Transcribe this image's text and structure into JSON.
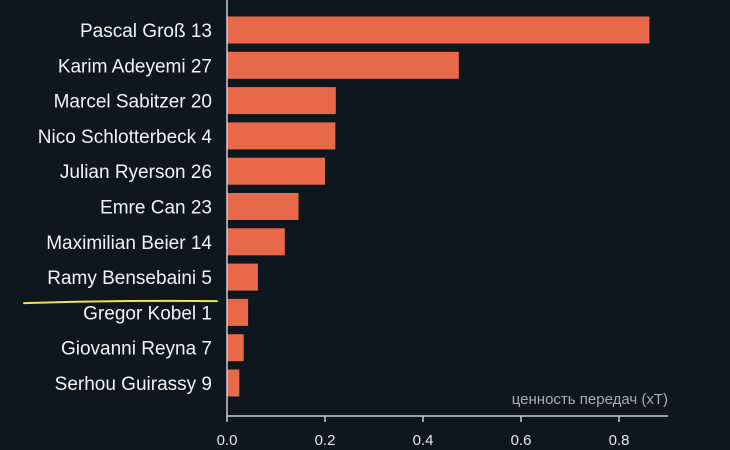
{
  "chart_data": {
    "type": "bar",
    "orientation": "horizontal",
    "categories": [
      "Pascal Groß 13",
      "Karim Adeyemi 27",
      "Marcel Sabitzer 20",
      "Nico Schlotterbeck 4",
      "Julian Ryerson 26",
      "Emre Can 23",
      "Maximilian Beier 14",
      "Ramy Bensebaini 5",
      "Gregor Kobel 1",
      "Giovanni Reyna 7",
      "Serhou Guirassy 9"
    ],
    "values": [
      0.862,
      0.473,
      0.222,
      0.221,
      0.2,
      0.146,
      0.118,
      0.063,
      0.043,
      0.034,
      0.025
    ],
    "title": "",
    "xlabel": "ценность передач (xT)",
    "ylabel": "",
    "xlim": [
      0,
      0.9
    ],
    "xticks": [
      "0.0",
      "0.2",
      "0.4",
      "0.6",
      "0.8"
    ],
    "grid": false,
    "highlighted_category": "Ramy Bensebaini 5",
    "colors": {
      "background": "#0f171e",
      "bar": "#e8694a",
      "axis": "#c8cdd2",
      "text": "#f2f2f2",
      "xlabel": "#a9adb1",
      "highlight_underline": "#f2e14a"
    }
  }
}
